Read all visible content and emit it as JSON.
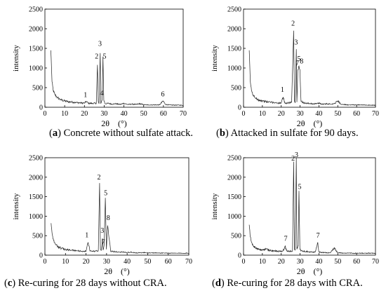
{
  "chart_data": [
    {
      "type": "line",
      "panel": "a",
      "caption": "Concrete without sulfate attack.",
      "xlabel": "2θ　(°)",
      "ylabel": "intensity",
      "xlim": [
        0,
        70
      ],
      "ylim": [
        0,
        2500
      ],
      "x_ticks": [
        0,
        10,
        20,
        30,
        40,
        50,
        60,
        70
      ],
      "y_ticks": [
        0,
        500,
        1000,
        1500,
        2000,
        2500
      ],
      "grid": false,
      "series": [
        {
          "x": [
            3,
            3.6,
            4.2,
            5,
            6,
            8,
            10,
            12,
            14,
            16,
            18,
            20,
            21,
            22,
            24,
            26,
            26.6,
            27,
            27.4,
            28,
            28.3,
            29,
            29.4,
            29.8,
            30.5,
            32,
            34,
            36,
            38,
            40,
            42,
            44,
            46,
            48,
            50,
            52,
            55,
            58,
            59.9,
            61,
            64,
            67,
            70
          ],
          "y": [
            1450,
            650,
            430,
            330,
            260,
            190,
            160,
            140,
            130,
            120,
            110,
            105,
            150,
            100,
            100,
            100,
            1080,
            150,
            90,
            1380,
            100,
            210,
            1290,
            180,
            90,
            100,
            80,
            90,
            70,
            100,
            70,
            80,
            70,
            90,
            65,
            60,
            60,
            60,
            160,
            70,
            55,
            55,
            50
          ]
        }
      ],
      "annotations": [
        {
          "label": "1",
          "x": 20.5,
          "y": 260
        },
        {
          "label": "2",
          "x": 26.2,
          "y": 1240
        },
        {
          "label": "3",
          "x": 27.9,
          "y": 1560
        },
        {
          "label": "4",
          "x": 28.8,
          "y": 300
        },
        {
          "label": "5",
          "x": 30.2,
          "y": 1240
        },
        {
          "label": "6",
          "x": 59.7,
          "y": 280
        }
      ]
    },
    {
      "type": "line",
      "panel": "b",
      "caption": "Attacked in sulfate for 90 days.",
      "xlabel": "2θ　(°)",
      "ylabel": "intensity",
      "xlim": [
        0,
        70
      ],
      "ylim": [
        0,
        2500
      ],
      "x_ticks": [
        0,
        10,
        20,
        30,
        40,
        50,
        60,
        70
      ],
      "y_ticks": [
        0,
        500,
        1000,
        1500,
        2000,
        2500
      ],
      "grid": false,
      "series": [
        {
          "x": [
            3,
            3.6,
            4.2,
            5,
            6,
            8,
            10,
            12,
            14,
            16,
            18,
            20,
            21,
            22,
            24,
            25.5,
            26.6,
            27,
            27.4,
            28,
            28.3,
            28.8,
            29.4,
            29.9,
            30.5,
            32,
            34,
            36,
            38,
            40,
            42,
            44,
            46,
            48,
            50,
            52,
            55,
            58,
            61,
            64,
            67,
            70
          ],
          "y": [
            1450,
            650,
            430,
            320,
            250,
            190,
            160,
            140,
            130,
            120,
            110,
            105,
            250,
            100,
            110,
            130,
            1950,
            170,
            120,
            1480,
            130,
            950,
            1050,
            960,
            150,
            110,
            100,
            90,
            90,
            100,
            80,
            90,
            80,
            90,
            160,
            70,
            60,
            60,
            60,
            55,
            55,
            50
          ]
        }
      ],
      "annotations": [
        {
          "label": "1",
          "x": 20.6,
          "y": 390
        },
        {
          "label": "2",
          "x": 26.3,
          "y": 2080
        },
        {
          "label": "3",
          "x": 27.9,
          "y": 1600
        },
        {
          "label": "7",
          "x": 28.5,
          "y": 1060
        },
        {
          "label": "5",
          "x": 29.4,
          "y": 1180
        },
        {
          "label": "8",
          "x": 30.8,
          "y": 1120
        }
      ]
    },
    {
      "type": "line",
      "panel": "c",
      "caption": "Re-curing for 28 days without CRA.",
      "xlabel": "2θ　(°)",
      "ylabel": "intensity",
      "xlim": [
        0,
        70
      ],
      "ylim": [
        0,
        2500
      ],
      "x_ticks": [
        0,
        10,
        20,
        30,
        40,
        50,
        60,
        70
      ],
      "y_ticks": [
        0,
        500,
        1000,
        1500,
        2000,
        2500
      ],
      "grid": false,
      "series": [
        {
          "x": [
            3,
            3.6,
            4.2,
            5,
            6,
            8,
            10,
            12,
            14,
            16,
            18,
            20,
            21,
            22,
            24,
            26,
            26.6,
            27,
            27.4,
            28,
            28.3,
            28.8,
            29.4,
            29.9,
            30.5,
            32,
            34,
            36,
            38,
            40,
            42,
            44,
            46,
            48,
            50,
            52,
            55,
            58,
            61,
            64,
            67,
            70
          ],
          "y": [
            820,
            520,
            380,
            290,
            230,
            170,
            150,
            130,
            120,
            110,
            100,
            100,
            330,
            100,
            100,
            110,
            1850,
            150,
            120,
            430,
            130,
            250,
            1470,
            150,
            760,
            100,
            90,
            80,
            80,
            70,
            70,
            60,
            60,
            70,
            60,
            60,
            55,
            55,
            50,
            50,
            50,
            50
          ]
        }
      ],
      "annotations": [
        {
          "label": "1",
          "x": 20.4,
          "y": 460
        },
        {
          "label": "2",
          "x": 26.3,
          "y": 1940
        },
        {
          "label": "3",
          "x": 27.9,
          "y": 580
        },
        {
          "label": "7",
          "x": 28.4,
          "y": 280
        },
        {
          "label": "5",
          "x": 29.6,
          "y": 1540
        },
        {
          "label": "8",
          "x": 30.8,
          "y": 900
        }
      ]
    },
    {
      "type": "line",
      "panel": "d",
      "caption": "Re-curing for 28 days with CRA.",
      "xlabel": "2θ　(°)",
      "ylabel": "intensity",
      "xlim": [
        0,
        70
      ],
      "ylim": [
        0,
        2500
      ],
      "x_ticks": [
        0,
        10,
        20,
        30,
        40,
        50,
        60,
        70
      ],
      "y_ticks": [
        0,
        500,
        1000,
        1500,
        2000,
        2500
      ],
      "grid": false,
      "series": [
        {
          "x": [
            3,
            3.6,
            4.2,
            5,
            6,
            8,
            10,
            12,
            14,
            16,
            18,
            20,
            21,
            22,
            23,
            24,
            26,
            26.6,
            27,
            27.4,
            28,
            28.3,
            29,
            29.4,
            29.9,
            30.5,
            32,
            34,
            36,
            38,
            39.4,
            40,
            42,
            44,
            46,
            48,
            50,
            52,
            55,
            58,
            61,
            64,
            67,
            70
          ],
          "y": [
            780,
            470,
            330,
            250,
            200,
            150,
            130,
            160,
            120,
            110,
            100,
            100,
            110,
            230,
            110,
            100,
            110,
            2400,
            160,
            130,
            2500,
            150,
            240,
            1650,
            150,
            110,
            100,
            90,
            80,
            80,
            330,
            80,
            70,
            60,
            60,
            180,
            60,
            55,
            55,
            50,
            50,
            50,
            50,
            50
          ]
        }
      ],
      "annotations": [
        {
          "label": "7",
          "x": 22.4,
          "y": 370
        },
        {
          "label": "2",
          "x": 26.3,
          "y": 2430
        },
        {
          "label": "3",
          "x": 28.1,
          "y": 2520
        },
        {
          "label": "5",
          "x": 29.8,
          "y": 1700
        },
        {
          "label": "7",
          "x": 39.5,
          "y": 450
        }
      ]
    }
  ]
}
